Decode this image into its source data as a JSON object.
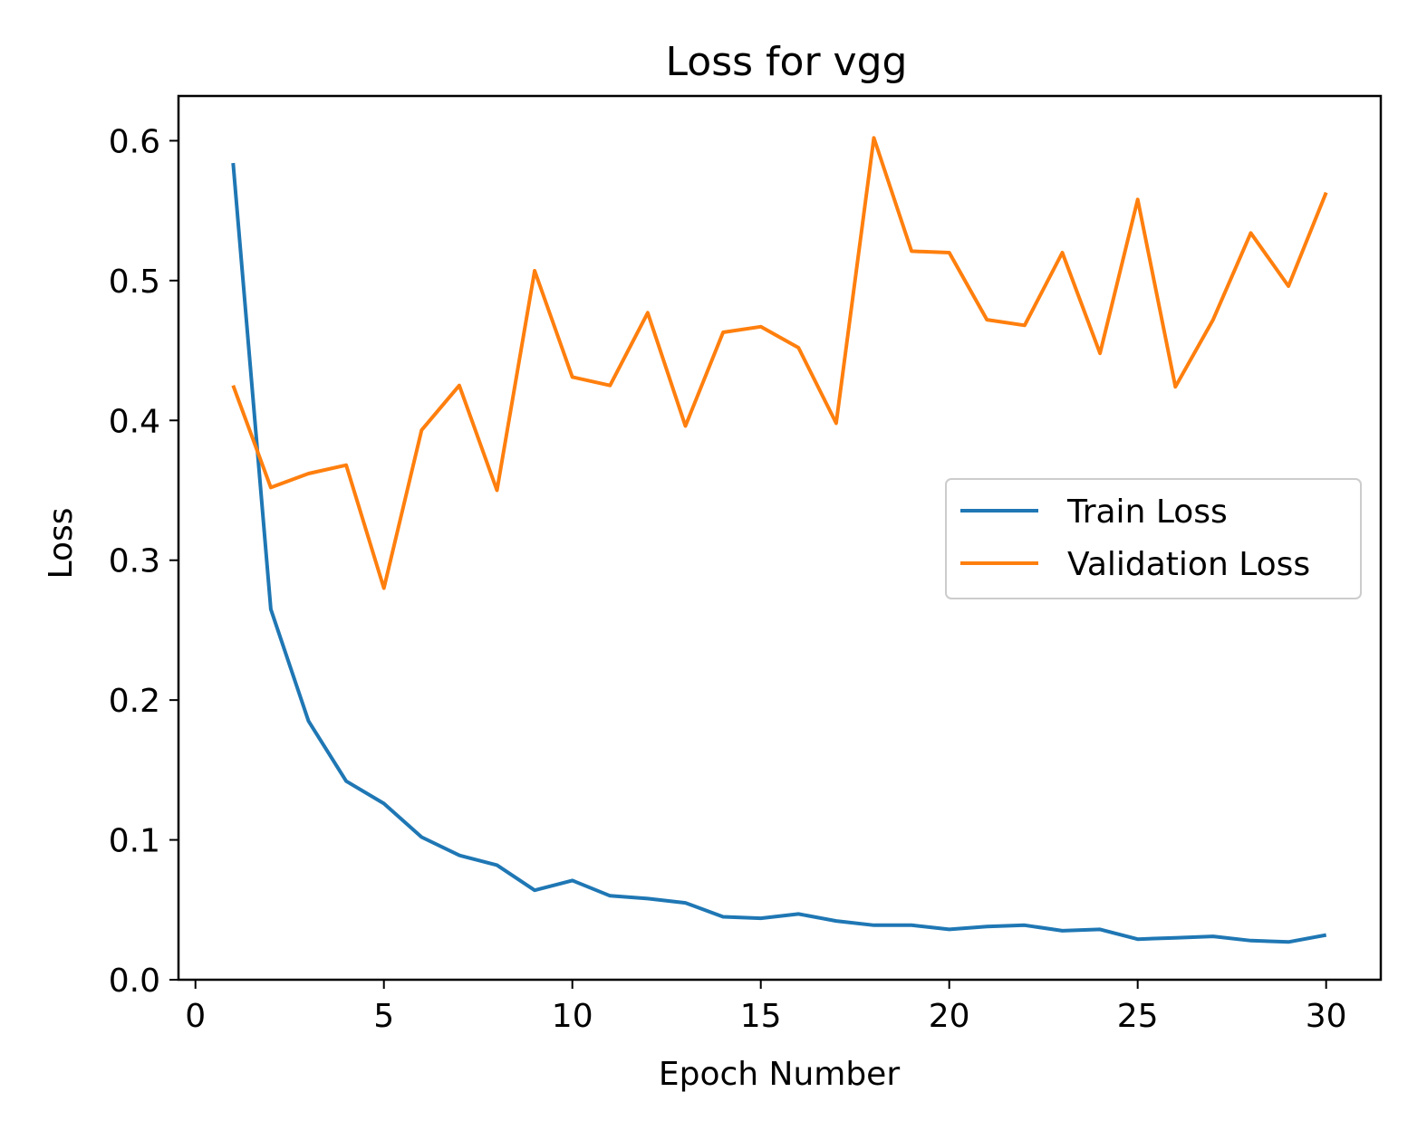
{
  "chart_data": {
    "type": "line",
    "title": "Loss for vgg",
    "xlabel": "Epoch Number",
    "ylabel": "Loss",
    "xlim": [
      -0.45,
      31.45
    ],
    "ylim": [
      0.0,
      0.632
    ],
    "xticks": [
      0,
      5,
      10,
      15,
      20,
      25,
      30
    ],
    "yticks": [
      0.0,
      0.1,
      0.2,
      0.3,
      0.4,
      0.5,
      0.6
    ],
    "xtick_labels": [
      "0",
      "5",
      "10",
      "15",
      "20",
      "25",
      "30"
    ],
    "ytick_labels": [
      "0.0",
      "0.1",
      "0.2",
      "0.3",
      "0.4",
      "0.5",
      "0.6"
    ],
    "grid": false,
    "legend_position": "center-right",
    "x": [
      1,
      2,
      3,
      4,
      5,
      6,
      7,
      8,
      9,
      10,
      11,
      12,
      13,
      14,
      15,
      16,
      17,
      18,
      19,
      20,
      21,
      22,
      23,
      24,
      25,
      26,
      27,
      28,
      29,
      30
    ],
    "series": [
      {
        "name": "Train Loss",
        "color": "#1f77b4",
        "values": [
          0.584,
          0.265,
          0.185,
          0.142,
          0.126,
          0.102,
          0.089,
          0.082,
          0.064,
          0.071,
          0.06,
          0.058,
          0.055,
          0.045,
          0.044,
          0.047,
          0.042,
          0.039,
          0.039,
          0.036,
          0.038,
          0.039,
          0.035,
          0.036,
          0.029,
          0.03,
          0.031,
          0.028,
          0.027,
          0.032
        ]
      },
      {
        "name": "Validation Loss",
        "color": "#ff7f0e",
        "values": [
          0.425,
          0.352,
          0.362,
          0.368,
          0.28,
          0.393,
          0.425,
          0.35,
          0.507,
          0.431,
          0.425,
          0.477,
          0.396,
          0.463,
          0.467,
          0.452,
          0.398,
          0.602,
          0.521,
          0.52,
          0.472,
          0.468,
          0.52,
          0.448,
          0.558,
          0.424,
          0.472,
          0.534,
          0.496,
          0.563
        ]
      }
    ]
  }
}
